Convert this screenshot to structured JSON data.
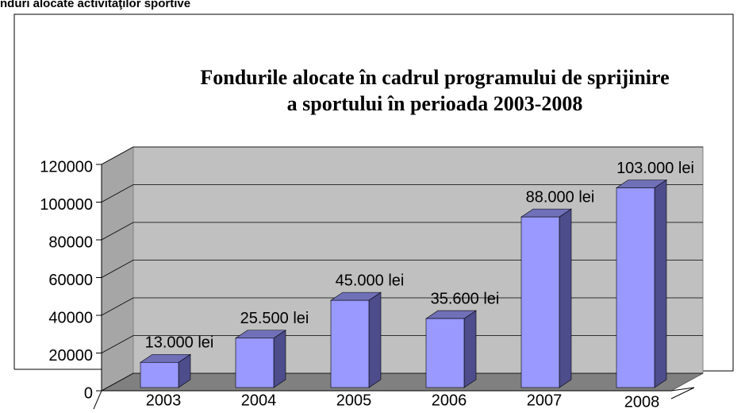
{
  "header": "nduri alocate activităţilor sportive",
  "chart_data": {
    "type": "bar3d",
    "title": "Fondurile alocate în cadrul programului de sprijinire\na sportului în perioada 2003-2008",
    "categories": [
      "2003",
      "2004",
      "2005",
      "2006",
      "2007",
      "2008"
    ],
    "values": [
      13000,
      25500,
      45000,
      35600,
      88000,
      103000
    ],
    "value_labels": [
      "13.000 lei",
      "25.500 lei",
      "45.000 lei",
      "35.600 lei",
      "88.000 lei",
      "103.000 lei"
    ],
    "color": "#9999ff",
    "ylim": [
      0,
      120000
    ],
    "yticks": [
      0,
      20000,
      40000,
      60000,
      80000,
      100000,
      120000
    ],
    "grid": true
  }
}
